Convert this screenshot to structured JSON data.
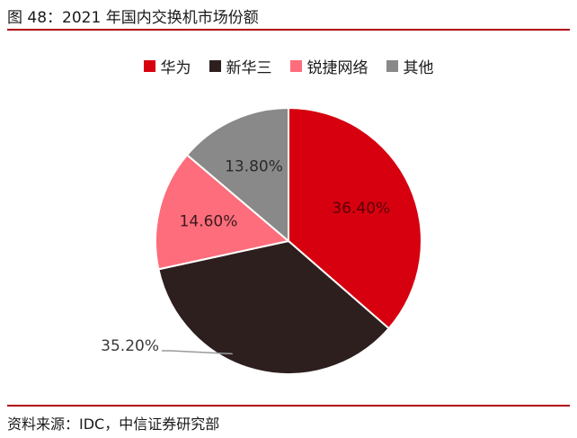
{
  "figure": {
    "title": "图 48：2021 年国内交换机市场份额",
    "source": "资料来源：IDC，中信证券研究部"
  },
  "chart_data": {
    "type": "pie",
    "title": "",
    "legend_position": "top",
    "slices": [
      {
        "name": "华为",
        "value": 36.4,
        "label": "36.40%",
        "color": "#d6000f"
      },
      {
        "name": "新华三",
        "value": 35.2,
        "label": "35.20%",
        "color": "#2e1f1f"
      },
      {
        "name": "锐捷网络",
        "value": 14.6,
        "label": "14.60%",
        "color": "#fd6d7c"
      },
      {
        "name": "其他",
        "value": 13.8,
        "label": "13.80%",
        "color": "#898989"
      }
    ]
  }
}
